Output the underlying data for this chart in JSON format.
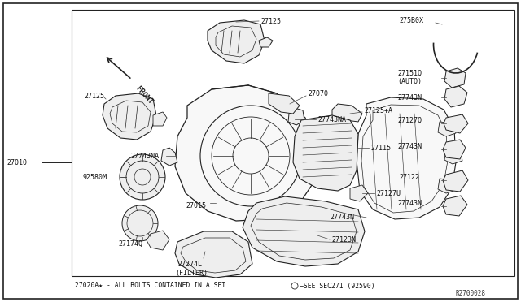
{
  "bg_color": "#ffffff",
  "border_color": "#000000",
  "title_ref": "R2700028",
  "bottom_note": "27020A★ - ALL BOLTS CONTAINED IN A SET",
  "bottom_note2": "—SEE SEC271 (92590)",
  "left_label": "27010",
  "font_size": 6.0,
  "lc": "#222222",
  "fc": "#f8f8f8",
  "fc2": "#eeeeee"
}
